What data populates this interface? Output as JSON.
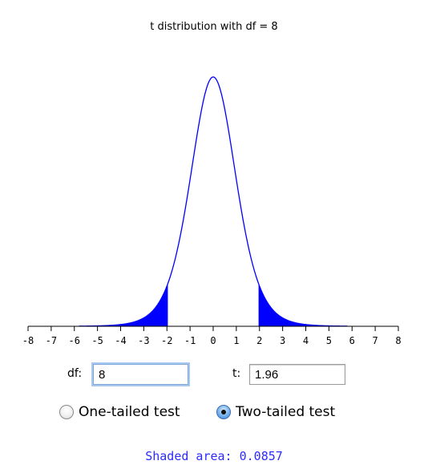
{
  "chart_data": {
    "type": "area",
    "title": "t distribution with df = 8",
    "df": 8,
    "t": 1.96,
    "tails": "two-tailed",
    "xlim": [
      -8,
      8
    ],
    "x_ticks": [
      -8,
      -7,
      -6,
      -5,
      -4,
      -3,
      -2,
      -1,
      0,
      1,
      2,
      3,
      4,
      5,
      6,
      7,
      8
    ],
    "x_tick_labels": [
      "-8",
      "-7",
      "-6",
      "-5",
      "-4",
      "-3",
      "-2",
      "-1",
      "0",
      "1",
      "2",
      "3",
      "4",
      "5",
      "6",
      "7",
      "8"
    ],
    "curve_range": [
      -5.8,
      5.8
    ],
    "shaded_regions": [
      [
        -5.8,
        -1.96
      ],
      [
        1.96,
        5.8
      ]
    ],
    "curve_color": "#0000ff",
    "fill_color": "#0000ff",
    "grid": false
  },
  "controls": {
    "df_label": "df:",
    "df_value": "8",
    "t_label": "t:",
    "t_value": "1.96",
    "one_tailed_label": "One-tailed test",
    "two_tailed_label": "Two-tailed test",
    "selected_test": "two-tailed"
  },
  "result": {
    "text": "Shaded area: 0.0857"
  }
}
